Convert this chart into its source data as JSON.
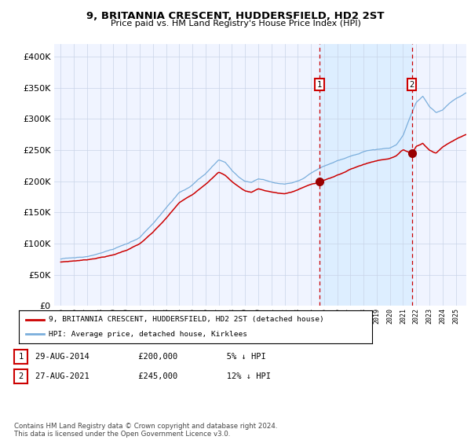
{
  "title": "9, BRITANNIA CRESCENT, HUDDERSFIELD, HD2 2ST",
  "subtitle": "Price paid vs. HM Land Registry's House Price Index (HPI)",
  "hpi_label": "HPI: Average price, detached house, Kirklees",
  "price_label": "9, BRITANNIA CRESCENT, HUDDERSFIELD, HD2 2ST (detached house)",
  "sale1": {
    "date": "29-AUG-2014",
    "price": 200000,
    "pct": "5%",
    "direction": "↓",
    "label": "1"
  },
  "sale2": {
    "date": "27-AUG-2021",
    "price": 245000,
    "pct": "12%",
    "direction": "↓",
    "label": "2"
  },
  "sale1_x": 2014.66,
  "sale2_x": 2021.66,
  "sale1_y": 200000,
  "sale2_y": 245000,
  "hpi_color": "#7aaedc",
  "price_color": "#cc0000",
  "dot_color": "#990000",
  "vline_color": "#cc0000",
  "shade_color": "#ddeeff",
  "background_color": "#f0f4ff",
  "grid_color": "#c8d4e8",
  "ylim": [
    0,
    420000
  ],
  "xlim_start": 1994.5,
  "xlim_end": 2025.8,
  "footnote": "Contains HM Land Registry data © Crown copyright and database right 2024.\nThis data is licensed under the Open Government Licence v3.0.",
  "hpi_anchors": [
    [
      1995,
      75000
    ],
    [
      1996,
      77000
    ],
    [
      1997,
      79000
    ],
    [
      1998,
      84000
    ],
    [
      1999,
      90000
    ],
    [
      2000,
      98000
    ],
    [
      2001,
      108000
    ],
    [
      2002,
      130000
    ],
    [
      2003,
      155000
    ],
    [
      2004,
      180000
    ],
    [
      2005,
      193000
    ],
    [
      2006,
      210000
    ],
    [
      2007,
      232000
    ],
    [
      2007.5,
      228000
    ],
    [
      2008,
      215000
    ],
    [
      2008.5,
      205000
    ],
    [
      2009,
      198000
    ],
    [
      2009.5,
      196000
    ],
    [
      2010,
      202000
    ],
    [
      2010.5,
      200000
    ],
    [
      2011,
      197000
    ],
    [
      2011.5,
      195000
    ],
    [
      2012,
      194000
    ],
    [
      2012.5,
      196000
    ],
    [
      2013,
      200000
    ],
    [
      2013.5,
      205000
    ],
    [
      2014,
      212000
    ],
    [
      2014.5,
      218000
    ],
    [
      2015,
      223000
    ],
    [
      2015.5,
      227000
    ],
    [
      2016,
      232000
    ],
    [
      2016.5,
      236000
    ],
    [
      2017,
      240000
    ],
    [
      2017.5,
      242000
    ],
    [
      2018,
      246000
    ],
    [
      2018.5,
      248000
    ],
    [
      2019,
      250000
    ],
    [
      2019.5,
      251000
    ],
    [
      2020,
      252000
    ],
    [
      2020.5,
      258000
    ],
    [
      2021,
      272000
    ],
    [
      2021.5,
      300000
    ],
    [
      2022,
      325000
    ],
    [
      2022.5,
      335000
    ],
    [
      2023,
      318000
    ],
    [
      2023.5,
      308000
    ],
    [
      2024,
      312000
    ],
    [
      2024.5,
      322000
    ],
    [
      2025,
      330000
    ],
    [
      2025.8,
      340000
    ]
  ],
  "price_anchors": [
    [
      1995,
      70000
    ],
    [
      1996,
      72000
    ],
    [
      1997,
      74000
    ],
    [
      1998,
      78000
    ],
    [
      1999,
      82000
    ],
    [
      2000,
      90000
    ],
    [
      2001,
      100000
    ],
    [
      2002,
      118000
    ],
    [
      2003,
      140000
    ],
    [
      2004,
      165000
    ],
    [
      2005,
      178000
    ],
    [
      2006,
      196000
    ],
    [
      2007,
      215000
    ],
    [
      2007.5,
      210000
    ],
    [
      2008,
      200000
    ],
    [
      2008.5,
      192000
    ],
    [
      2009,
      185000
    ],
    [
      2009.5,
      183000
    ],
    [
      2010,
      189000
    ],
    [
      2010.5,
      186000
    ],
    [
      2011,
      184000
    ],
    [
      2011.5,
      182000
    ],
    [
      2012,
      181000
    ],
    [
      2012.5,
      183000
    ],
    [
      2013,
      187000
    ],
    [
      2013.5,
      192000
    ],
    [
      2014,
      196000
    ],
    [
      2014.5,
      198000
    ],
    [
      2014.66,
      200000
    ],
    [
      2015,
      202000
    ],
    [
      2015.5,
      206000
    ],
    [
      2016,
      211000
    ],
    [
      2016.5,
      215000
    ],
    [
      2017,
      220000
    ],
    [
      2017.5,
      224000
    ],
    [
      2018,
      228000
    ],
    [
      2018.5,
      231000
    ],
    [
      2019,
      234000
    ],
    [
      2019.5,
      236000
    ],
    [
      2020,
      238000
    ],
    [
      2020.5,
      243000
    ],
    [
      2021,
      252000
    ],
    [
      2021.5,
      248000
    ],
    [
      2021.66,
      245000
    ],
    [
      2022,
      258000
    ],
    [
      2022.5,
      263000
    ],
    [
      2023,
      252000
    ],
    [
      2023.5,
      248000
    ],
    [
      2024,
      258000
    ],
    [
      2024.5,
      264000
    ],
    [
      2025,
      270000
    ],
    [
      2025.8,
      278000
    ]
  ]
}
